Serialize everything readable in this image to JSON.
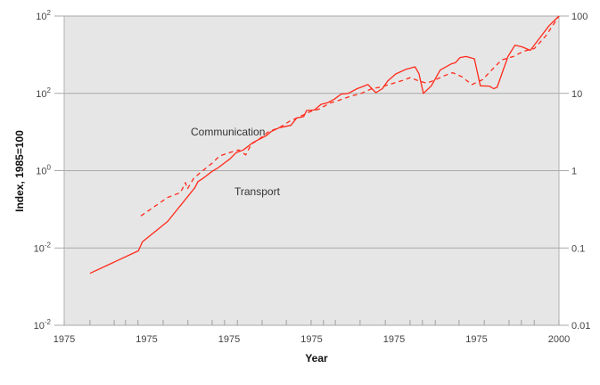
{
  "chart_data": {
    "type": "line",
    "title": "",
    "xlabel": "Year",
    "ylabel": "Index,  1985=100",
    "x_tick_labels": [
      "1975",
      "1975",
      "1975",
      "1975",
      "1975",
      "1975",
      "2000"
    ],
    "left_y_tick_labels": [
      {
        "base": "10",
        "exp": "2"
      },
      {
        "base": "10",
        "exp": "2"
      },
      {
        "base": "10",
        "exp": "0"
      },
      {
        "base": "10",
        "exp": "-2"
      },
      {
        "base": "10",
        "exp": "-2"
      }
    ],
    "right_y_tick_labels": [
      "100",
      "10",
      "1",
      "0.1",
      "0.01"
    ],
    "y_scale": "log",
    "ylim": [
      0.01,
      100
    ],
    "xlim": [
      0,
      1
    ],
    "x_note": "x positions expressed as fraction of axis span (tick labels as printed)",
    "grid": "horizontal",
    "legend": "inline annotations",
    "annotations": [
      {
        "text": "Communication",
        "series": "Communication"
      },
      {
        "text": "Transport",
        "series": "Transport"
      }
    ],
    "series": [
      {
        "name": "Transport",
        "style": "solid",
        "color": "#ff2a1a",
        "x": [
          0.052,
          0.15,
          0.158,
          0.209,
          0.264,
          0.27,
          0.281,
          0.299,
          0.31,
          0.335,
          0.335,
          0.348,
          0.362,
          0.381,
          0.409,
          0.418,
          0.435,
          0.458,
          0.47,
          0.484,
          0.49,
          0.506,
          0.519,
          0.533,
          0.546,
          0.56,
          0.574,
          0.592,
          0.614,
          0.63,
          0.643,
          0.654,
          0.67,
          0.691,
          0.709,
          0.717,
          0.726,
          0.742,
          0.76,
          0.782,
          0.791,
          0.8,
          0.812,
          0.829,
          0.841,
          0.859,
          0.868,
          0.875,
          0.897,
          0.911,
          0.925,
          0.942,
          0.964,
          0.98,
          1.0
        ],
        "values": [
          0.047,
          0.092,
          0.12,
          0.22,
          0.6,
          0.72,
          0.8,
          0.98,
          1.08,
          1.42,
          1.42,
          1.72,
          1.85,
          2.3,
          2.85,
          3.2,
          3.6,
          3.85,
          4.8,
          5.0,
          6.0,
          6.1,
          7.2,
          7.6,
          8.4,
          9.8,
          10.0,
          11.5,
          13.0,
          10.2,
          11.5,
          14.5,
          17.8,
          20.5,
          22.0,
          18.0,
          10.0,
          12.5,
          20.0,
          24.0,
          25.0,
          29.0,
          30.0,
          28.0,
          12.5,
          12.4,
          11.5,
          12.0,
          30.0,
          42.0,
          40.0,
          36.0,
          55.0,
          75.0,
          100.0
        ]
      },
      {
        "name": "Communication",
        "style": "dashed",
        "color": "#ff2a1a",
        "x": [
          0.155,
          0.209,
          0.235,
          0.245,
          0.249,
          0.262,
          0.28,
          0.299,
          0.314,
          0.335,
          0.353,
          0.367,
          0.378,
          0.392,
          0.413,
          0.435,
          0.454,
          0.476,
          0.497,
          0.516,
          0.537,
          0.552,
          0.575,
          0.6,
          0.622,
          0.638,
          0.66,
          0.681,
          0.7,
          0.716,
          0.733,
          0.75,
          0.769,
          0.785,
          0.803,
          0.824,
          0.845,
          0.864,
          0.884,
          0.908,
          0.928,
          0.95,
          0.973,
          0.99,
          1.0
        ],
        "values": [
          0.26,
          0.45,
          0.52,
          0.7,
          0.58,
          0.8,
          1.0,
          1.25,
          1.55,
          1.72,
          1.85,
          1.6,
          2.2,
          2.5,
          3.2,
          3.6,
          4.3,
          5.0,
          5.8,
          6.3,
          7.5,
          8.0,
          9.0,
          10.0,
          11.5,
          12.0,
          13.2,
          14.5,
          16.0,
          14.5,
          13.5,
          15.0,
          17.0,
          18.5,
          16.5,
          13.0,
          15.0,
          20.0,
          27.0,
          30.0,
          35.0,
          38.0,
          55.0,
          80.0,
          100.0
        ]
      }
    ]
  }
}
